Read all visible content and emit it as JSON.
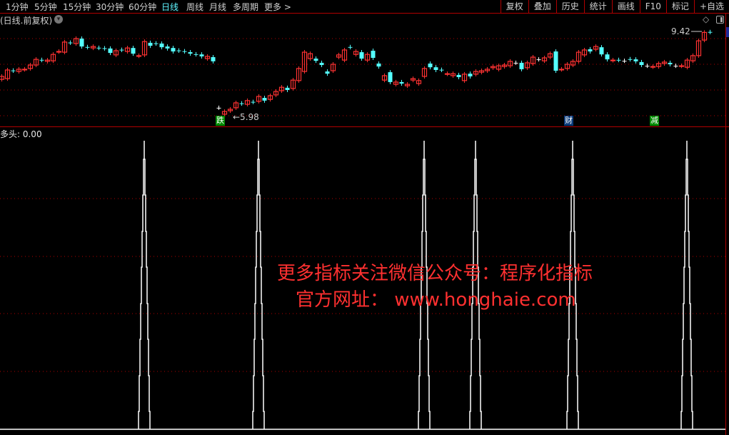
{
  "toolbar": {
    "periods": [
      "1分钟",
      "5分钟",
      "15分钟",
      "30分钟",
      "60分钟",
      "日线",
      "周线",
      "月线",
      "多周期",
      "更多 >"
    ],
    "active_period": "日线",
    "right_buttons": [
      "复权",
      "叠加",
      "历史",
      "统计",
      "画线",
      "F10",
      "标记",
      "+自选"
    ]
  },
  "chart_header": {
    "title": "(日线.前复权)",
    "dropdown_icon": "chevron-down-icon",
    "diamond_icon": "diamond-icon",
    "panel_icon": "panel-toggle-icon"
  },
  "colors": {
    "up": "#ff3232",
    "down": "#54ffff",
    "flat": "#ffffff",
    "grid": "#b00000",
    "indicator": "#ffffff",
    "watermark": "#ff3030"
  },
  "markers": [
    {
      "label": "跌",
      "candle": 38,
      "color": "#008a00"
    },
    {
      "label": "财",
      "candle": 99,
      "color": "#0a3a7a"
    },
    {
      "label": "减",
      "candle": 114,
      "color": "#008a00"
    }
  ],
  "indicator": {
    "label": "多头: 0.00"
  },
  "watermark": {
    "line1": "更多指标关注微信公众号：程序化指标",
    "line2": "官方网址： www.honghaie.com"
  },
  "chart_data": {
    "type": "candlestick",
    "price_high_label": "9.42",
    "price_low_label": "5.98",
    "price_high": 9.42,
    "price_low": 5.98,
    "oc": [
      [
        7.48,
        7.6
      ],
      [
        7.51,
        7.86
      ],
      [
        7.84,
        7.83
      ],
      [
        7.8,
        7.89
      ],
      [
        7.88,
        7.89
      ],
      [
        7.92,
        8.06
      ],
      [
        8.06,
        8.29
      ],
      [
        8.27,
        8.26
      ],
      [
        8.21,
        8.26
      ],
      [
        8.23,
        8.49
      ],
      [
        8.6,
        8.61
      ],
      [
        8.58,
        8.99
      ],
      [
        8.97,
        8.96
      ],
      [
        8.93,
        9.13
      ],
      [
        9.13,
        8.81
      ],
      [
        8.79,
        8.78
      ],
      [
        8.75,
        8.81
      ],
      [
        8.76,
        8.75
      ],
      [
        8.74,
        8.73
      ],
      [
        8.73,
        8.55
      ],
      [
        8.47,
        8.64
      ],
      [
        8.68,
        8.67
      ],
      [
        8.61,
        8.75
      ],
      [
        8.75,
        8.52
      ],
      [
        8.43,
        8.44
      ],
      [
        8.47,
        9.01
      ],
      [
        8.96,
        8.84
      ],
      [
        8.94,
        8.93
      ],
      [
        8.93,
        8.78
      ],
      [
        8.81,
        8.73
      ],
      [
        8.75,
        8.61
      ],
      [
        8.65,
        8.64
      ],
      [
        8.62,
        8.61
      ],
      [
        8.58,
        8.52
      ],
      [
        8.5,
        8.49
      ],
      [
        8.49,
        8.41
      ],
      [
        8.32,
        8.41
      ],
      [
        8.38,
        8.21
      ],
      [
        6.33,
        6.33
      ],
      [
        6.07,
        6.18
      ],
      [
        6.21,
        6.27
      ],
      [
        6.33,
        6.53
      ],
      [
        6.51,
        6.5
      ],
      [
        6.47,
        6.62
      ],
      [
        6.57,
        6.56
      ],
      [
        6.59,
        6.79
      ],
      [
        6.73,
        6.62
      ],
      [
        6.67,
        6.82
      ],
      [
        6.85,
        6.99
      ],
      [
        7.02,
        7.16
      ],
      [
        7.14,
        7.05
      ],
      [
        7.11,
        7.45
      ],
      [
        7.43,
        7.92
      ],
      [
        7.8,
        8.58
      ],
      [
        8.32,
        8.52
      ],
      [
        8.32,
        8.23
      ],
      [
        8.15,
        8.06
      ],
      [
        7.8,
        7.71
      ],
      [
        7.83,
        8.09
      ],
      [
        8.38,
        8.47
      ],
      [
        8.26,
        8.67
      ],
      [
        8.79,
        8.78
      ],
      [
        8.49,
        8.61
      ],
      [
        8.58,
        8.32
      ],
      [
        8.26,
        8.49
      ],
      [
        8.64,
        8.35
      ],
      [
        8.12,
        8.0
      ],
      [
        7.45,
        7.63
      ],
      [
        7.77,
        7.37
      ],
      [
        7.28,
        7.37
      ],
      [
        7.37,
        7.31
      ],
      [
        7.22,
        7.28
      ],
      [
        7.45,
        7.51
      ],
      [
        7.31,
        7.43
      ],
      [
        7.6,
        7.92
      ],
      [
        8.12,
        7.97
      ],
      [
        7.97,
        7.86
      ],
      [
        7.87,
        7.86
      ],
      [
        7.7,
        7.71
      ],
      [
        7.63,
        7.71
      ],
      [
        7.66,
        7.57
      ],
      [
        7.43,
        7.69
      ],
      [
        7.71,
        7.6
      ],
      [
        7.69,
        7.8
      ],
      [
        7.77,
        7.83
      ],
      [
        7.83,
        7.89
      ],
      [
        7.95,
        8.0
      ],
      [
        7.89,
        8.03
      ],
      [
        8.0,
        8.06
      ],
      [
        8.03,
        8.21
      ],
      [
        8.15,
        8.15
      ],
      [
        8.15,
        7.89
      ],
      [
        7.95,
        8.15
      ],
      [
        8.12,
        8.38
      ],
      [
        8.29,
        8.29
      ],
      [
        8.23,
        8.35
      ],
      [
        8.38,
        8.52
      ],
      [
        8.61,
        7.83
      ],
      [
        7.88,
        7.89
      ],
      [
        7.92,
        8.09
      ],
      [
        8.06,
        8.21
      ],
      [
        8.21,
        8.58
      ],
      [
        8.47,
        8.67
      ],
      [
        8.7,
        8.61
      ],
      [
        8.7,
        8.81
      ],
      [
        8.78,
        8.49
      ],
      [
        8.49,
        8.29
      ],
      [
        8.25,
        8.26
      ],
      [
        8.27,
        8.26
      ],
      [
        8.23,
        8.23
      ],
      [
        8.3,
        8.29
      ],
      [
        8.29,
        8.21
      ],
      [
        8.18,
        8.06
      ],
      [
        8.03,
        8.03
      ],
      [
        7.99,
        8.0
      ],
      [
        8.0,
        8.12
      ],
      [
        8.12,
        8.18
      ],
      [
        8.15,
        8.09
      ],
      [
        8.03,
        8.03
      ],
      [
        8.02,
        8.03
      ],
      [
        7.97,
        8.26
      ],
      [
        8.23,
        8.44
      ],
      [
        8.44,
        9.04
      ],
      [
        9.07,
        9.38
      ],
      [
        9.4,
        9.39
      ]
    ],
    "indicator_spike_candles": [
      25,
      45,
      74,
      83,
      100,
      120
    ],
    "indicator_value": 0.0
  }
}
